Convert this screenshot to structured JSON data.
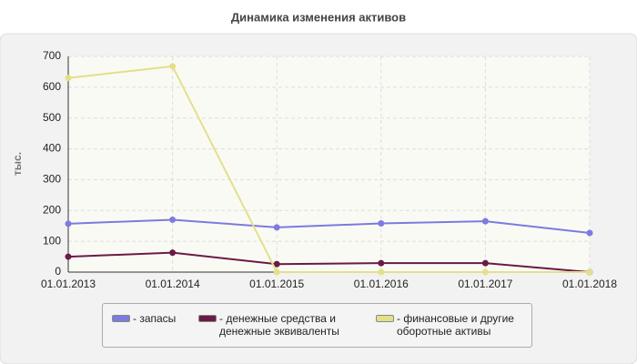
{
  "chart_data": {
    "type": "line",
    "title": "Динамика изменения активов",
    "y_label": "тыс.",
    "categories": [
      "01.01.2013",
      "01.01.2014",
      "01.01.2015",
      "01.01.2016",
      "01.01.2017",
      "01.01.2018"
    ],
    "series": [
      {
        "name": "- запасы",
        "color": "#7b7be0",
        "values": [
          157,
          170,
          145,
          158,
          165,
          127
        ]
      },
      {
        "name": "- денежные средства и денежные эквиваленты",
        "color": "#6b1a45",
        "values": [
          50,
          63,
          26,
          29,
          29,
          0
        ]
      },
      {
        "name": "- финансовые и другие оборотные активы",
        "color": "#e3e08a",
        "values": [
          630,
          668,
          0,
          0,
          0,
          0
        ]
      }
    ],
    "ylim": [
      0,
      700
    ],
    "yticks": [
      0,
      100,
      200,
      300,
      400,
      500,
      600,
      700
    ],
    "grid": true
  }
}
